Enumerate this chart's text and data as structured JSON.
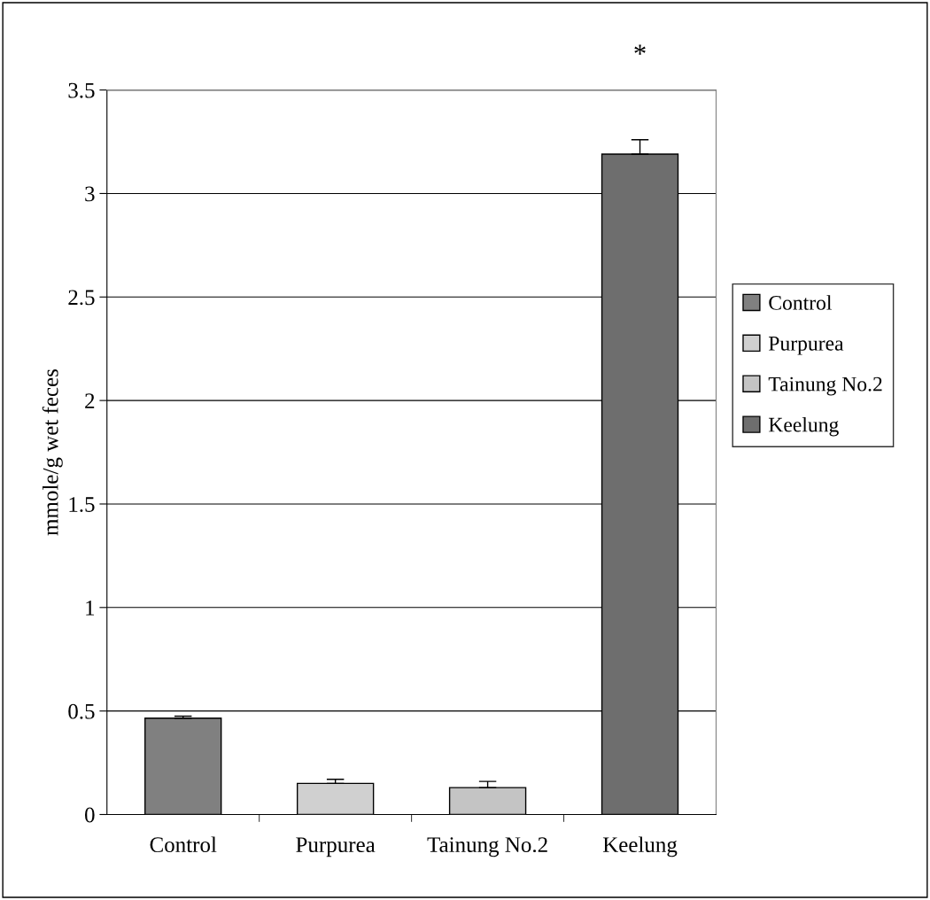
{
  "chart_data": {
    "type": "bar",
    "ylabel": "mmole/g wet feces",
    "categories": [
      "Control",
      "Purpurea",
      "Tainung No.2",
      "Keelung"
    ],
    "series": [
      {
        "name": "Control",
        "color": "#808080",
        "values": [
          0.465,
          null,
          null,
          null
        ],
        "errors": [
          0.01,
          null,
          null,
          null
        ]
      },
      {
        "name": "Purpurea",
        "color": "#d0d0d0",
        "values": [
          null,
          0.15,
          null,
          null
        ],
        "errors": [
          null,
          0.02,
          null,
          null
        ]
      },
      {
        "name": "Tainung No.2",
        "color": "#c4c4c4",
        "values": [
          null,
          null,
          0.13,
          null
        ],
        "errors": [
          null,
          null,
          0.03,
          null
        ]
      },
      {
        "name": "Keelung",
        "color": "#6e6e6e",
        "values": [
          null,
          null,
          null,
          3.19
        ],
        "errors": [
          null,
          null,
          null,
          0.07
        ]
      }
    ],
    "ylim": [
      0,
      3.5
    ],
    "yticks": [
      0,
      0.5,
      1,
      1.5,
      2,
      2.5,
      3,
      3.5
    ],
    "grid": "y",
    "legend": "right",
    "annotations": [
      "*"
    ]
  }
}
